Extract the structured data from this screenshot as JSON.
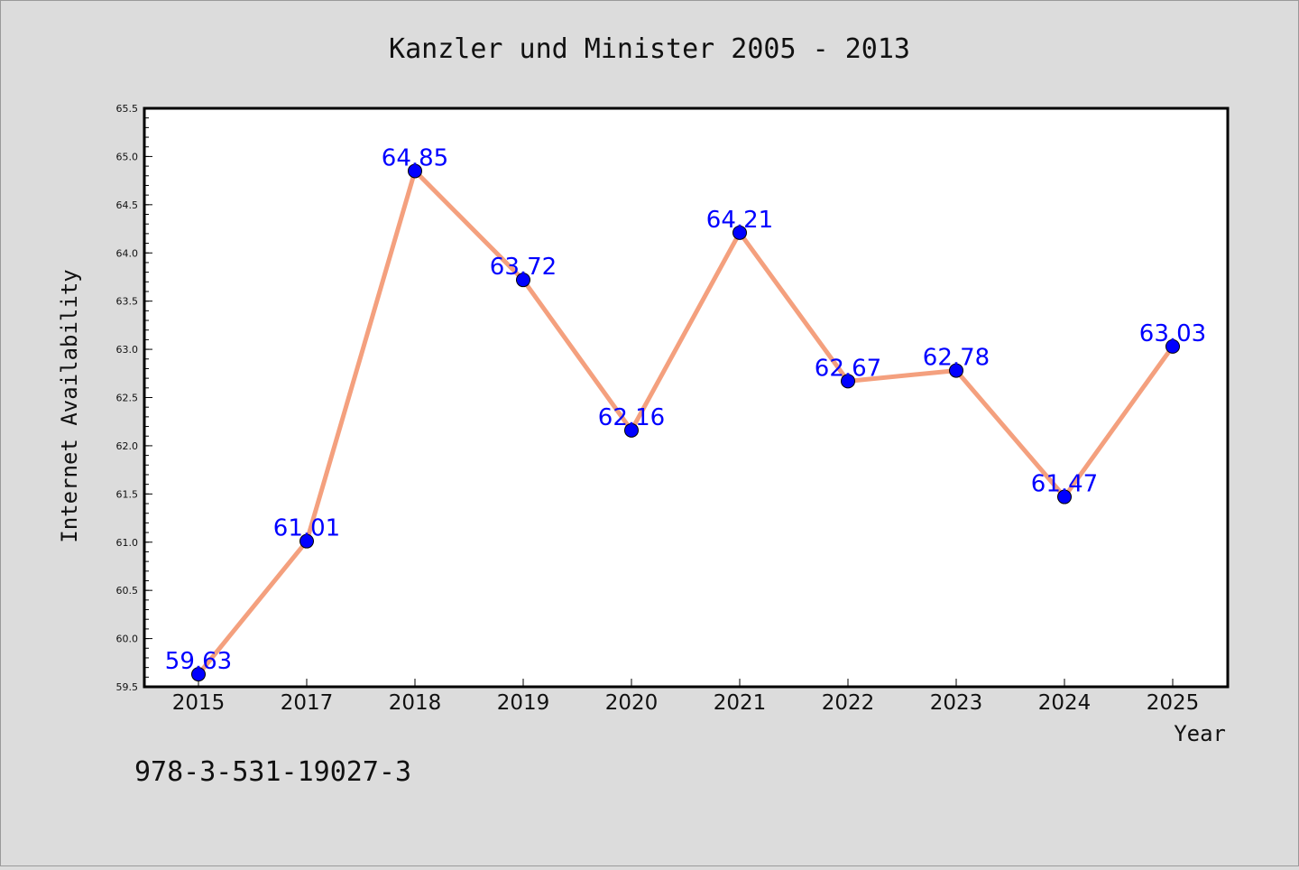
{
  "chart_data": {
    "type": "line",
    "title": "Kanzler und Minister 2005 - 2013",
    "xlabel": "Year",
    "ylabel": "Internet Availability",
    "categories": [
      "2015",
      "2017",
      "2018",
      "2019",
      "2020",
      "2021",
      "2022",
      "2023",
      "2024",
      "2025"
    ],
    "series": [
      {
        "values": [
          59.63,
          61.01,
          64.85,
          63.72,
          62.16,
          64.21,
          62.67,
          62.78,
          61.47,
          63.03
        ]
      }
    ],
    "data_labels": [
      "59.63",
      "61.01",
      "64.85",
      "63.72",
      "62.16",
      "64.21",
      "62.67",
      "62.78",
      "61.47",
      "63.03"
    ],
    "ylim": [
      59.5,
      65.5
    ],
    "yticks": [
      "59.5",
      "60.0",
      "60.5",
      "61.0",
      "61.5",
      "62.0",
      "62.5",
      "63.0",
      "63.5",
      "64.0",
      "64.5",
      "65.0",
      "65.5"
    ],
    "grid": false,
    "line_color": "#f4a07e",
    "marker_color": "#0000ff",
    "label_color": "#0000ff",
    "background_color": "#dcdcdc",
    "plot_background": "#ffffff"
  },
  "footer": {
    "isbn": "978-3-531-19027-3"
  }
}
